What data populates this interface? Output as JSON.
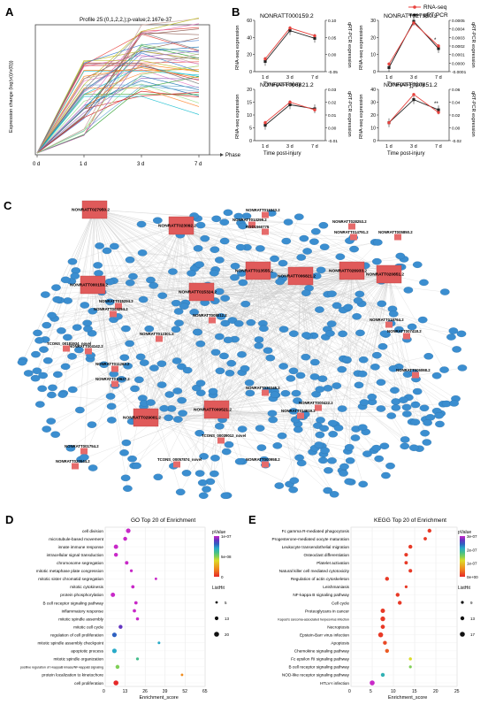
{
  "panels": {
    "a": {
      "letter": "A"
    },
    "b": {
      "letter": "B"
    },
    "c": {
      "letter": "C"
    },
    "d": {
      "letter": "D"
    },
    "e": {
      "letter": "E"
    }
  },
  "panel_a": {
    "title": "Profile 25:(0,1,2,2,);p-value;2.167e-37",
    "ylabel": "Expression change (log(v(i)/v(0)))",
    "xlabel": "Phase",
    "xticks": [
      "0 d",
      "1 d",
      "3 d",
      "7 d"
    ]
  },
  "panel_b": {
    "legend": [
      "RNA-seq",
      "qRT-PCR"
    ],
    "colors": {
      "rnaseq": "#e8413c",
      "qpcr": "#222222"
    },
    "xticks": [
      "1 d",
      "3 d",
      "7 d"
    ],
    "xlabel": "Time post-injury",
    "ylabel_left": "RNA-seq expression",
    "ylabel_right": "qRT-PCR expression",
    "subplots": [
      {
        "title": "NONRATT000159.2",
        "left_ticks": [
          "0",
          "20",
          "40",
          "60"
        ],
        "right_ticks": [
          "0.10",
          "0.05",
          "0.00",
          "-0.05"
        ],
        "marks": [
          "",
          "",
          ""
        ]
      },
      {
        "title": "NONRATT027950.2",
        "left_ticks": [
          "0",
          "10",
          "20",
          "30"
        ],
        "right_ticks": [
          "0.0005",
          "0.0004",
          "0.0003",
          "0.0002",
          "0.0001",
          "0.0000",
          "-0.0001"
        ],
        "marks": [
          "",
          "+++",
          "*"
        ]
      },
      {
        "title": "NONRATT006821.2",
        "left_ticks": [
          "0",
          "5",
          "10",
          "15",
          "20"
        ],
        "right_ticks": [
          "0.03",
          "0.02",
          "0.01",
          "0.00",
          "-0.01"
        ],
        "marks": [
          "",
          "",
          ""
        ]
      },
      {
        "title": "NONRATT020851.2",
        "left_ticks": [
          "0",
          "10",
          "20",
          "30",
          "40"
        ],
        "right_ticks": [
          "0.06",
          "0.04",
          "0.02",
          "0.00",
          "-0.02"
        ],
        "marks": [
          "",
          "**",
          "**"
        ]
      }
    ]
  },
  "panel_c": {
    "hubs": [
      "NONRATT027950.2",
      "NONRATT023092.2",
      "NONRATT000159.2",
      "NONRATT006821.2",
      "NONRATT015324.2",
      "NONRATT013555.2",
      "NONRATT020851.2",
      "NONRATT009521.2",
      "NONRATT029001.2",
      "NONRATT026933.2"
    ],
    "lnc_labels": [
      "NONRATT016343.2",
      "NONRATT013299.2",
      "NONRATT028253.2",
      "NONRATT014791.2",
      "NONRATT005850.2",
      "NONRATT015294.2",
      "NONRATT003294.2",
      "NONRATT008012.2",
      "NONRATT012301.2",
      "NONRATT004142.2",
      "NONRATT011263.2",
      "NONRATT010627.2",
      "NONRATT018764.2",
      "NONRATT007418.2",
      "NONRATT006068.2",
      "NONRATT000422.2",
      "NONRATT030345.2",
      "NONRATT014619.2",
      "NONRATT020544.2",
      "NONRATT000958.2",
      "NONRATT001754.2",
      "TCONS_00181934_novel",
      "TCONS_00039012_novel",
      "TCONS_00057874_novel",
      "RGD1560775"
    ]
  },
  "panel_d": {
    "title": "GO  Top 20 of  Enrichment",
    "xlabel": "Enrichment_score",
    "legend_pvalue_title": "pValue",
    "legend_pvalue_ticks": [
      "1e-07",
      "5e-08",
      "0"
    ],
    "legend_size_title": "ListHit",
    "legend_size_ticks": [
      "5",
      "13",
      "20"
    ],
    "chart_data": {
      "type": "scatter",
      "xlabel": "Enrichment_score",
      "xticks": [
        "0",
        "13",
        "26",
        "39",
        "52",
        "65"
      ],
      "xlim": [
        0,
        65
      ],
      "terms": [
        "cell division",
        "microtubule-based movement",
        "innate immune response",
        "intracellular signal transduction",
        "chromosome segregation",
        "mitotic metaphase plate congression",
        "mitotic sister chromatid segregation",
        "mitotic cytokinesis",
        "protein phosphorylation",
        "B cell receptor signaling pathway",
        "inflammatory response",
        "mitotic spindle assembly",
        "mitotic cell cycle",
        "regulation of cell proliferation",
        "mitotic spindle assembly checkpoint",
        "apoptotic process",
        "mitotic spindle organization",
        "positive regulation of I-kappaB kinase/NF-kappaB signaling",
        "protein localization to kinetochore",
        "cell proliferation"
      ],
      "values": [
        15,
        13,
        7,
        7,
        14,
        17,
        33,
        18,
        5,
        20,
        19,
        21,
        10,
        6,
        35,
        6,
        21,
        8,
        50,
        7
      ],
      "pvalue": [
        1e-07,
        1e-07,
        1e-07,
        1e-07,
        1e-07,
        1e-07,
        1e-07,
        1e-07,
        1e-07,
        1e-07,
        1e-07,
        1e-07,
        9e-08,
        8e-08,
        7e-08,
        7e-08,
        6e-08,
        5e-08,
        2e-08,
        0
      ],
      "listhit": [
        15,
        12,
        14,
        12,
        10,
        7,
        5,
        9,
        14,
        9,
        9,
        8,
        12,
        15,
        6,
        15,
        7,
        12,
        5,
        17
      ]
    }
  },
  "panel_e": {
    "title": "KEGG   Top 20 of   Enrichment",
    "xlabel": "Enrichment_score",
    "legend_pvalue_title": "pValue",
    "legend_pvalue_ticks": [
      "3e-07",
      "2e-07",
      "1e-07",
      "0e+00"
    ],
    "legend_size_title": "ListHit",
    "legend_size_ticks": [
      "9",
      "13",
      "17"
    ],
    "chart_data": {
      "type": "scatter",
      "xlabel": "Enrichment_score",
      "xticks": [
        "0",
        "5",
        "10",
        "15",
        "20",
        "25"
      ],
      "xlim": [
        0,
        25
      ],
      "terms": [
        "Fc gamma R-mediated phagocytosis",
        "Progesterone-mediated oocyte maturation",
        "Leukocyte transendothelial migration",
        "Osteoclast differentiation",
        "Platelet activation",
        "Natural killer cell mediated cytotoxicity",
        "Regulation of actin cytoskeleton",
        "Leishmaniasis",
        "NF-kappa B signaling pathway",
        "Cell cycle",
        "Proteoglycans in cancer",
        "Kaposi's sarcoma-associated herpesvirus infection",
        "Necroptosis",
        "Epstein-Barr virus infection",
        "Apoptosis",
        "Chemokine signaling pathway",
        "Fc epsilon RI signaling pathway",
        "B cell receptor signaling pathway",
        "NOD-like receptor signaling pathway",
        "HTLV-I infection"
      ],
      "values": [
        18.5,
        17.5,
        14,
        13,
        13,
        14,
        8.5,
        13,
        11,
        11.5,
        7.5,
        7.5,
        7.5,
        7,
        8,
        8.5,
        14,
        14,
        7.5,
        5
      ],
      "pvalue": [
        1e-08,
        1e-08,
        1e-08,
        1e-08,
        1e-08,
        1e-08,
        1e-08,
        1e-08,
        1e-08,
        1e-08,
        1e-08,
        1e-08,
        1e-08,
        1e-08,
        2e-08,
        3e-08,
        1.2e-07,
        1.5e-07,
        2e-07,
        3e-07
      ],
      "listhit": [
        13,
        11,
        13,
        12,
        11,
        12,
        13,
        9,
        13,
        13,
        15,
        16,
        14,
        17,
        13,
        13,
        10,
        9,
        13,
        17
      ]
    }
  }
}
